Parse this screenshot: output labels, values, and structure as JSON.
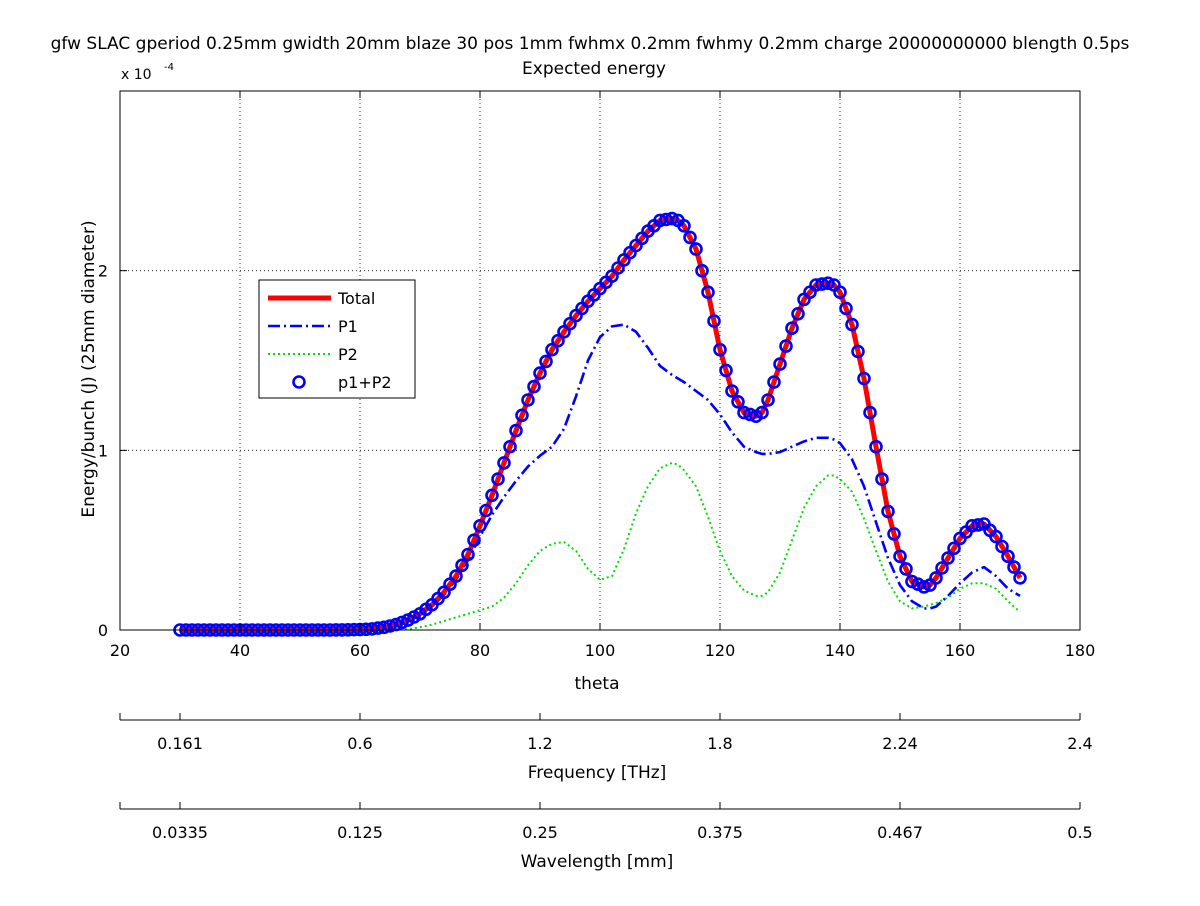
{
  "chart_data": {
    "type": "line",
    "title": "gfw SLAC gperiod 0.25mm gwidth 20mm blaze 30 pos 1mm fwhmx 0.2mm fwhmy 0.2mm charge 20000000000 blength 0.5ps",
    "subtitle": "Expected energy",
    "xlabel": "theta",
    "ylabel": "Energy/bunch (J) (25mm diameter)",
    "y_exponent_base": "x 10",
    "y_exponent_power": "-4",
    "xlim": [
      20,
      180
    ],
    "ylim": [
      0,
      3.0
    ],
    "y_scale_factor": 0.0001,
    "grid": true,
    "legend_position": "upper-left",
    "x_ticks": [
      "20",
      "40",
      "60",
      "80",
      "100",
      "120",
      "140",
      "160",
      "180"
    ],
    "y_ticks": [
      "0",
      "1",
      "2"
    ],
    "legend": [
      "Total",
      "P1",
      "P2",
      "p1+P2"
    ],
    "secondary_axes": [
      {
        "label": "Frequency [THz]",
        "tick_labels": [
          "0.161",
          "0.6",
          "1.2",
          "1.8",
          "2.24",
          "2.4"
        ]
      },
      {
        "label": "Wavelength [mm]",
        "tick_labels": [
          "0.0335",
          "0.125",
          "0.25",
          "0.375",
          "0.467",
          "0.5"
        ]
      }
    ],
    "x": [
      30,
      35,
      40,
      45,
      50,
      55,
      60,
      62,
      64,
      66,
      68,
      70,
      72,
      74,
      76,
      78,
      80,
      82,
      84,
      86,
      88,
      90,
      92,
      94,
      96,
      98,
      100,
      102,
      104,
      106,
      108,
      110,
      112,
      113,
      114,
      116,
      118,
      120,
      122,
      124,
      126,
      127,
      128,
      130,
      132,
      134,
      136,
      138,
      139,
      140,
      142,
      144,
      146,
      148,
      150,
      152,
      154,
      155,
      156,
      158,
      160,
      162,
      164,
      166,
      168,
      170
    ],
    "series": [
      {
        "name": "Total",
        "color": "#ff0000",
        "style": "solid",
        "values": [
          0,
          0,
          0,
          0,
          0,
          0,
          0.002,
          0.006,
          0.015,
          0.03,
          0.055,
          0.09,
          0.14,
          0.21,
          0.3,
          0.42,
          0.58,
          0.75,
          0.93,
          1.11,
          1.28,
          1.43,
          1.56,
          1.66,
          1.75,
          1.83,
          1.9,
          1.97,
          2.06,
          2.14,
          2.22,
          2.28,
          2.29,
          2.28,
          2.25,
          2.12,
          1.88,
          1.56,
          1.33,
          1.21,
          1.19,
          1.21,
          1.28,
          1.48,
          1.68,
          1.84,
          1.92,
          1.93,
          1.92,
          1.88,
          1.7,
          1.4,
          1.02,
          0.66,
          0.41,
          0.27,
          0.24,
          0.25,
          0.29,
          0.4,
          0.51,
          0.58,
          0.59,
          0.52,
          0.41,
          0.29
        ]
      },
      {
        "name": "P1",
        "color": "#0000ff",
        "style": "dashdot",
        "values": [
          0,
          0,
          0,
          0,
          0,
          0,
          0.002,
          0.006,
          0.015,
          0.03,
          0.05,
          0.085,
          0.13,
          0.195,
          0.28,
          0.39,
          0.52,
          0.64,
          0.74,
          0.83,
          0.91,
          0.97,
          1.02,
          1.12,
          1.3,
          1.5,
          1.63,
          1.69,
          1.7,
          1.66,
          1.57,
          1.47,
          1.42,
          1.4,
          1.38,
          1.33,
          1.28,
          1.2,
          1.1,
          1.02,
          0.99,
          0.98,
          0.98,
          0.99,
          1.02,
          1.05,
          1.07,
          1.07,
          1.06,
          1.04,
          0.95,
          0.8,
          0.6,
          0.4,
          0.25,
          0.16,
          0.12,
          0.12,
          0.13,
          0.19,
          0.26,
          0.32,
          0.35,
          0.3,
          0.23,
          0.19
        ]
      },
      {
        "name": "P2",
        "color": "#00dd00",
        "style": "dotted",
        "values": [
          0,
          0,
          0,
          0,
          0,
          0,
          0,
          0,
          0,
          0,
          0.005,
          0.015,
          0.03,
          0.05,
          0.07,
          0.09,
          0.11,
          0.13,
          0.18,
          0.26,
          0.36,
          0.44,
          0.48,
          0.49,
          0.44,
          0.34,
          0.28,
          0.3,
          0.45,
          0.65,
          0.8,
          0.9,
          0.93,
          0.92,
          0.89,
          0.8,
          0.63,
          0.44,
          0.3,
          0.22,
          0.19,
          0.19,
          0.21,
          0.32,
          0.5,
          0.68,
          0.8,
          0.86,
          0.86,
          0.84,
          0.77,
          0.62,
          0.44,
          0.27,
          0.16,
          0.12,
          0.13,
          0.14,
          0.15,
          0.18,
          0.23,
          0.26,
          0.26,
          0.23,
          0.16,
          0.1
        ]
      }
    ],
    "markers": {
      "name": "p1+P2",
      "color": "#0000ff",
      "step": 1,
      "x_start": 30,
      "x_end": 170
    }
  }
}
